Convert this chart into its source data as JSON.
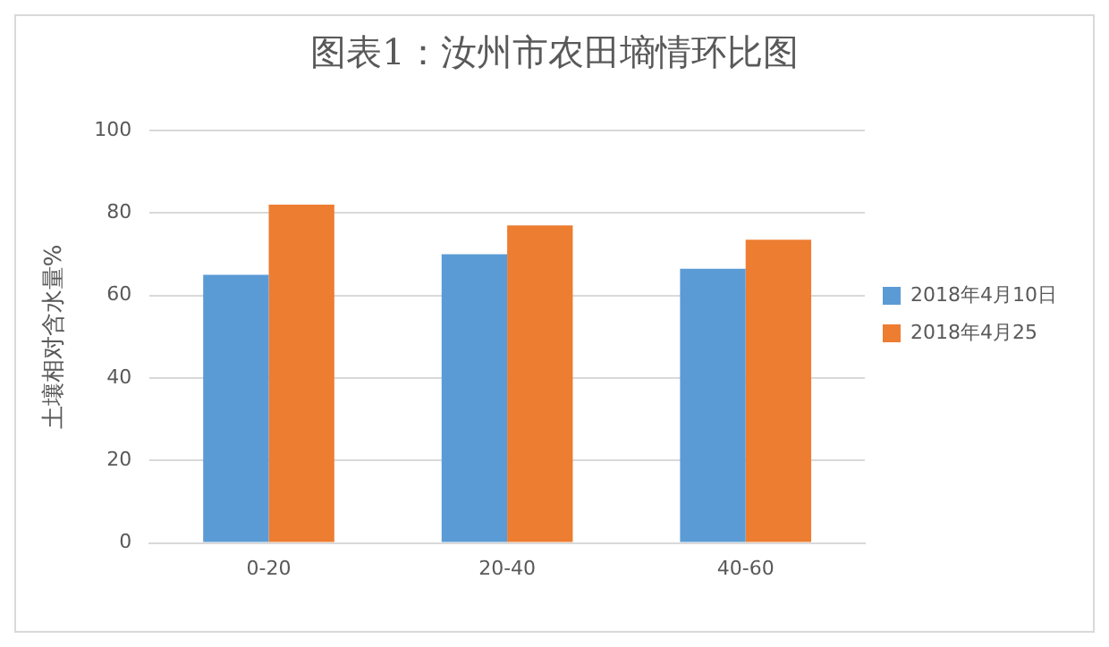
{
  "chart_data": {
    "type": "bar",
    "title": "图表1：汝州市农田墒情环比图",
    "ylabel": "土壤相对含水量%",
    "categories": [
      "0-20",
      "20-40",
      "40-60"
    ],
    "series": [
      {
        "name": "2018年4月10日",
        "color": "#5b9bd5",
        "values": [
          65,
          70,
          66.5
        ]
      },
      {
        "name": "2018年4月25",
        "color": "#ed7d31",
        "values": [
          82,
          77,
          73.5
        ]
      }
    ],
    "ylim": [
      0,
      100
    ],
    "yticks": [
      0,
      20,
      40,
      60,
      80,
      100
    ],
    "grid": "y",
    "legend": "right"
  }
}
